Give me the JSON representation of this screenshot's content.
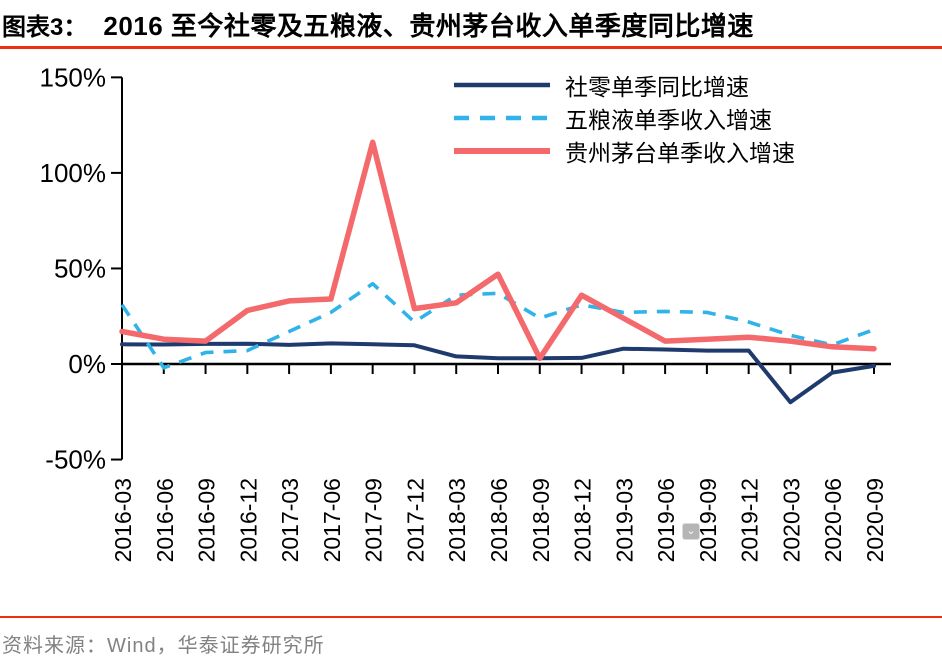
{
  "header": {
    "label": "图表3：",
    "title": "2016 至今社零及五粮液、贵州茅台收入单季度同比增速"
  },
  "footer": {
    "source": "资料来源：Wind，华泰证券研究所"
  },
  "ui": {
    "badge": {
      "icon": "chevron-down",
      "glyph": "⌄"
    }
  },
  "colors": {
    "rule_red": "#ee2d11",
    "axis_black": "#000000",
    "footer_grey": "#828282",
    "badge_grey": "#b5b5b5"
  },
  "chart_data": {
    "type": "line",
    "title": "2016 至今社零及五粮液、贵州茅台收入单季度同比增速",
    "xlabel": "",
    "ylabel": "",
    "categories": [
      "2016-03",
      "2016-06",
      "2016-09",
      "2016-12",
      "2017-03",
      "2017-06",
      "2017-09",
      "2017-12",
      "2018-03",
      "2018-06",
      "2018-09",
      "2018-12",
      "2019-03",
      "2019-06",
      "2019-09",
      "2019-12",
      "2020-03",
      "2020-06",
      "2020-09"
    ],
    "series": [
      {
        "name": "社零单季同比增速",
        "color": "#1f3a6d",
        "style": "solid",
        "values": [
          10.3,
          10.2,
          10.5,
          10.6,
          10.0,
          10.8,
          10.3,
          9.8,
          4.0,
          3.0,
          3.0,
          3.2,
          8.0,
          7.6,
          7.0,
          7.0,
          -20.0,
          -4.5,
          -1.0
        ]
      },
      {
        "name": "五粮液单季收入增速",
        "color": "#2fb3e8",
        "style": "dashed",
        "values": [
          31,
          -2,
          6,
          7,
          17,
          27,
          42,
          22,
          36,
          37,
          24,
          31,
          27,
          27.5,
          27,
          22,
          15,
          10,
          18
        ]
      },
      {
        "name": "贵州茅台单季收入增速",
        "color": "#f4696b",
        "style": "solid",
        "values": [
          17,
          13,
          12,
          28,
          33,
          34,
          116,
          29,
          32,
          47,
          3,
          36,
          24,
          12,
          13,
          14,
          12,
          9,
          8
        ]
      }
    ],
    "y_ticks": [
      150,
      100,
      50,
      0,
      -50
    ],
    "y_tick_labels": [
      "150%",
      "100%",
      "50%",
      "0%",
      "-50%"
    ],
    "ylim": [
      -50,
      150
    ],
    "grid": false,
    "legend_position": "top-center"
  }
}
